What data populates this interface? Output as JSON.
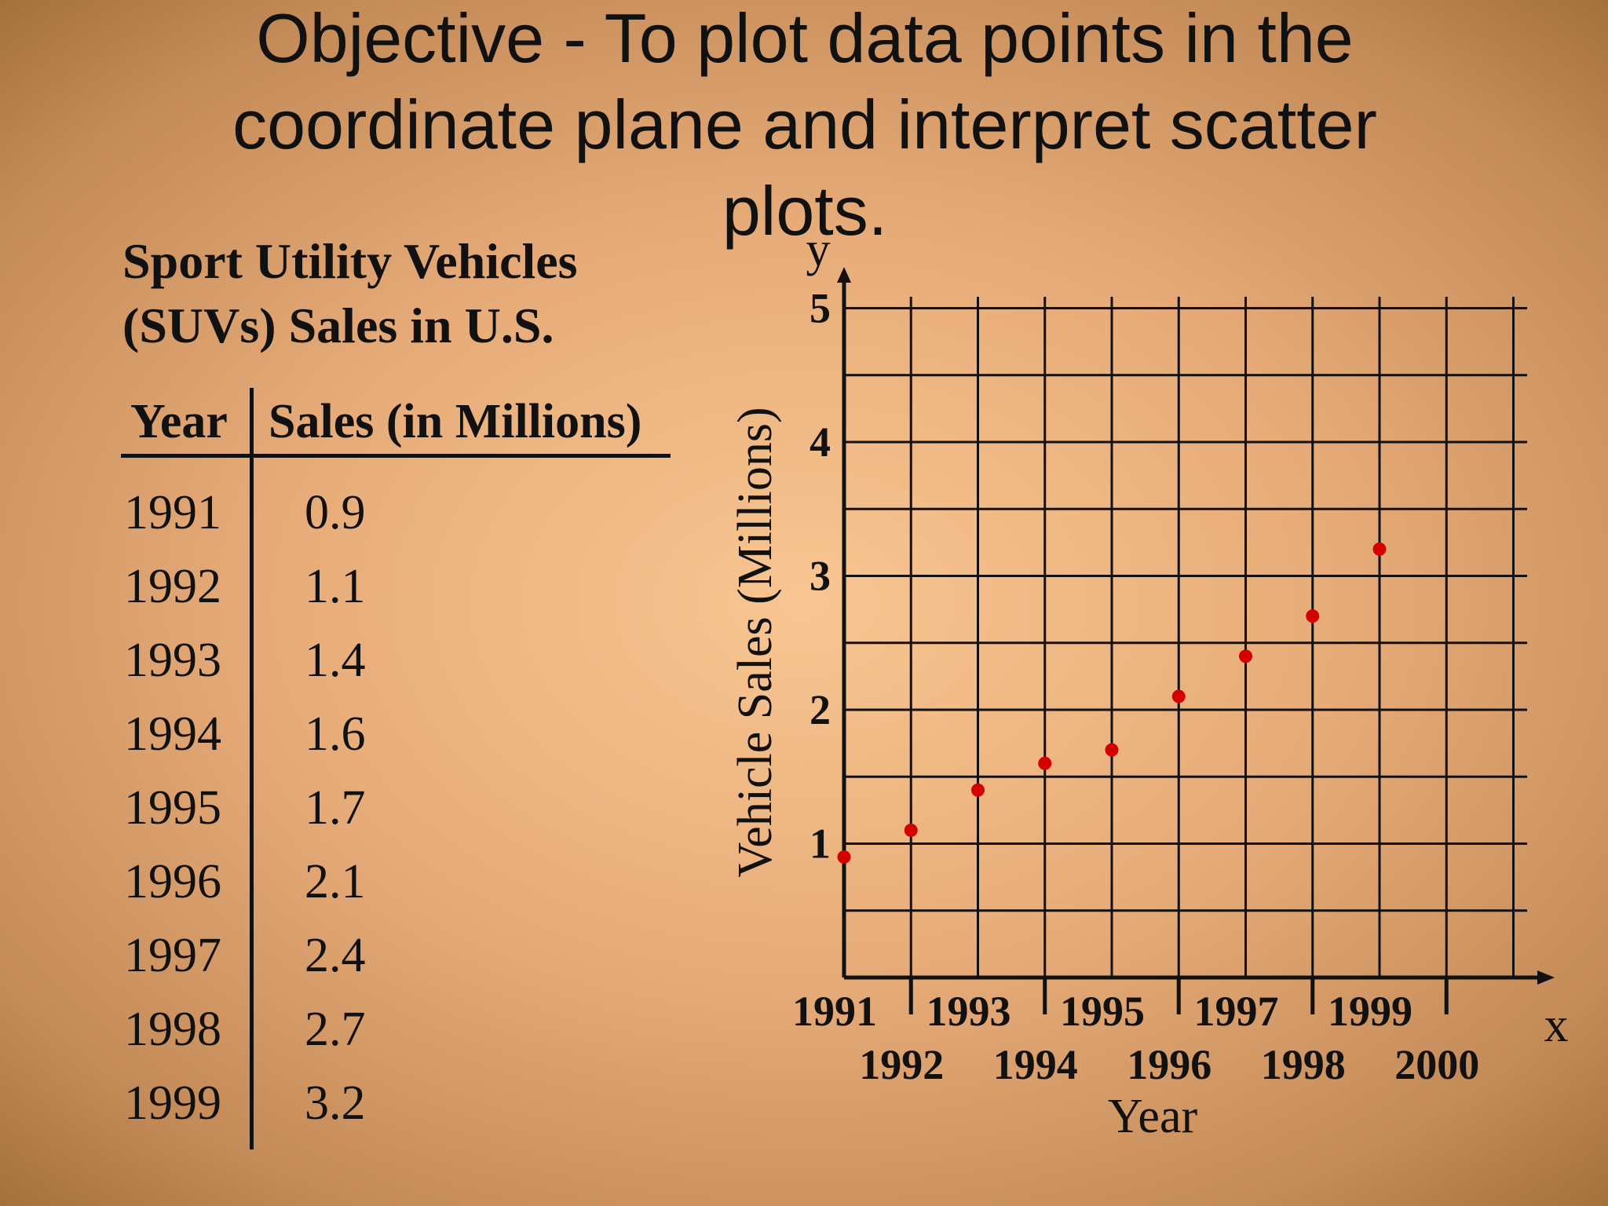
{
  "slide": {
    "title": "Objective - To plot data points in the coordinate plane and interpret scatter plots."
  },
  "table": {
    "caption_line1": "Sport Utility Vehicles",
    "caption_line2": "(SUVs) Sales in U.S.",
    "headers": {
      "year": "Year",
      "sales": "Sales (in Millions)"
    },
    "rows": [
      {
        "year": "1991",
        "sales": "0.9"
      },
      {
        "year": "1992",
        "sales": "1.1"
      },
      {
        "year": "1993",
        "sales": "1.4"
      },
      {
        "year": "1994",
        "sales": "1.6"
      },
      {
        "year": "1995",
        "sales": "1.7"
      },
      {
        "year": "1996",
        "sales": "2.1"
      },
      {
        "year": "1997",
        "sales": "2.4"
      },
      {
        "year": "1998",
        "sales": "2.7"
      },
      {
        "year": "1999",
        "sales": "3.2"
      }
    ]
  },
  "chart_data": {
    "type": "scatter",
    "title": "",
    "xlabel": "Year",
    "ylabel": "Vehicle Sales (Millions)",
    "x_axis_letter": "x",
    "y_axis_letter": "y",
    "xlim": [
      1991,
      2001
    ],
    "ylim": [
      0,
      5.2
    ],
    "x_ticks": [
      "1991",
      "1992",
      "1993",
      "1994",
      "1995",
      "1996",
      "1997",
      "1998",
      "1999",
      "2000"
    ],
    "y_ticks": [
      "1",
      "2",
      "3",
      "4",
      "5"
    ],
    "grid": true,
    "point_color": "#d40000",
    "points": [
      {
        "x": 1991,
        "y": 0.9
      },
      {
        "x": 1992,
        "y": 1.1
      },
      {
        "x": 1993,
        "y": 1.4
      },
      {
        "x": 1994,
        "y": 1.6
      },
      {
        "x": 1995,
        "y": 1.7
      },
      {
        "x": 1996,
        "y": 2.1
      },
      {
        "x": 1997,
        "y": 2.4
      },
      {
        "x": 1998,
        "y": 2.7
      },
      {
        "x": 1999,
        "y": 3.2
      }
    ]
  }
}
